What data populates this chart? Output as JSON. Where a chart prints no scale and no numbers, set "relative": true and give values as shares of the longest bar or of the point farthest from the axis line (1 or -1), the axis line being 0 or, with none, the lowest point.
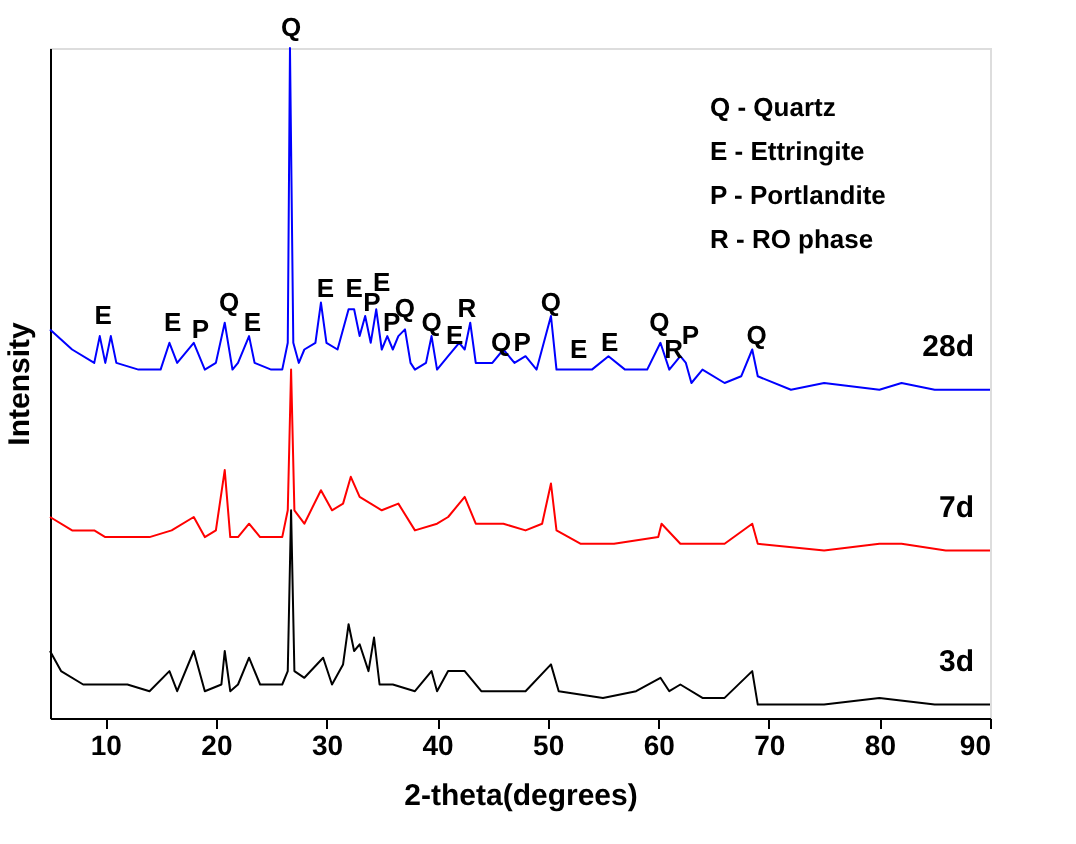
{
  "chart_data": {
    "type": "line",
    "relative": true,
    "xlabel": "2-theta(degrees)",
    "ylabel": "Intensity",
    "xlim": [
      5,
      90
    ],
    "xticks": [
      10,
      20,
      30,
      40,
      50,
      60,
      70,
      80,
      90
    ],
    "tick_labels": "x",
    "series": [
      {
        "name": "28d",
        "color": "#0000ff",
        "x": [
          5,
          7,
          9,
          9.5,
          10,
          10.5,
          11,
          13,
          15,
          15.8,
          16.5,
          18,
          19,
          20,
          20.8,
          21.5,
          22,
          23,
          23.5,
          25,
          26,
          26.5,
          26.7,
          27,
          27.5,
          28,
          29,
          29.5,
          30,
          31,
          32,
          32.5,
          33,
          33.5,
          34,
          34.5,
          35,
          35.5,
          36,
          36.5,
          37.1,
          37.6,
          38,
          39,
          39.5,
          40,
          41,
          42,
          42.5,
          43,
          43.5,
          45,
          46,
          47,
          48,
          49,
          50.3,
          50.8,
          52,
          54,
          55.5,
          57,
          59,
          60.2,
          61,
          62,
          62.5,
          63,
          64,
          66,
          67.5,
          68.5,
          69,
          72,
          75,
          80,
          82,
          85,
          88,
          90
        ],
        "values": [
          0.58,
          0.55,
          0.53,
          0.57,
          0.53,
          0.57,
          0.53,
          0.52,
          0.52,
          0.56,
          0.53,
          0.56,
          0.52,
          0.53,
          0.59,
          0.52,
          0.53,
          0.57,
          0.53,
          0.52,
          0.52,
          0.56,
          1,
          0.56,
          0.53,
          0.55,
          0.56,
          0.62,
          0.56,
          0.55,
          0.61,
          0.61,
          0.57,
          0.6,
          0.56,
          0.61,
          0.55,
          0.57,
          0.55,
          0.57,
          0.58,
          0.53,
          0.52,
          0.53,
          0.57,
          0.52,
          0.54,
          0.56,
          0.55,
          0.59,
          0.53,
          0.53,
          0.55,
          0.53,
          0.54,
          0.52,
          0.6,
          0.52,
          0.52,
          0.52,
          0.54,
          0.52,
          0.52,
          0.56,
          0.52,
          0.54,
          0.53,
          0.5,
          0.52,
          0.5,
          0.51,
          0.55,
          0.51,
          0.49,
          0.5,
          0.49,
          0.5,
          0.49,
          0.49,
          0.49
        ]
      },
      {
        "name": "7d",
        "color": "#ff0000",
        "x": [
          5,
          7,
          9,
          10,
          12,
          14,
          16,
          18,
          19,
          20,
          20.8,
          21.3,
          22,
          23,
          24,
          26,
          26.5,
          26.8,
          27.1,
          28,
          29.5,
          30.5,
          31.5,
          32.2,
          33,
          35,
          36.5,
          38,
          40,
          41,
          42.5,
          43.5,
          46,
          48,
          49.5,
          50.3,
          50.8,
          53,
          56,
          60,
          60.3,
          62,
          66,
          68.5,
          69,
          75,
          80,
          82,
          86,
          90
        ],
        "values": [
          0.3,
          0.28,
          0.28,
          0.27,
          0.27,
          0.27,
          0.28,
          0.3,
          0.27,
          0.28,
          0.37,
          0.27,
          0.27,
          0.29,
          0.27,
          0.27,
          0.31,
          0.52,
          0.31,
          0.29,
          0.34,
          0.31,
          0.32,
          0.36,
          0.33,
          0.31,
          0.32,
          0.28,
          0.29,
          0.3,
          0.33,
          0.29,
          0.29,
          0.28,
          0.29,
          0.35,
          0.28,
          0.26,
          0.26,
          0.27,
          0.29,
          0.26,
          0.26,
          0.29,
          0.26,
          0.25,
          0.26,
          0.26,
          0.25,
          0.25
        ]
      },
      {
        "name": "3d",
        "color": "#000000",
        "x": [
          5,
          6,
          8,
          10,
          12,
          14,
          15.8,
          16.5,
          18,
          19,
          20.5,
          20.8,
          21.3,
          22,
          23,
          24,
          26,
          26.5,
          26.8,
          27.1,
          28,
          29.7,
          30.5,
          31.5,
          32,
          32.5,
          33,
          33.8,
          34.3,
          34.8,
          36,
          38,
          39.5,
          40,
          41,
          42.5,
          44,
          46,
          48,
          50.3,
          51,
          55,
          58,
          60.2,
          61,
          62,
          64,
          66,
          68.5,
          69,
          75,
          80,
          85,
          90
        ],
        "values": [
          0.1,
          0.07,
          0.05,
          0.05,
          0.05,
          0.04,
          0.07,
          0.04,
          0.1,
          0.04,
          0.05,
          0.1,
          0.04,
          0.05,
          0.09,
          0.05,
          0.05,
          0.07,
          0.31,
          0.07,
          0.06,
          0.09,
          0.05,
          0.08,
          0.14,
          0.1,
          0.11,
          0.07,
          0.12,
          0.05,
          0.05,
          0.04,
          0.07,
          0.04,
          0.07,
          0.07,
          0.04,
          0.04,
          0.04,
          0.08,
          0.04,
          0.03,
          0.04,
          0.06,
          0.04,
          0.05,
          0.03,
          0.03,
          0.07,
          0.02,
          0.02,
          0.03,
          0.02,
          0.02
        ]
      }
    ],
    "annotations": [
      {
        "text": "E",
        "x": 9.8,
        "y": 0.57
      },
      {
        "text": "E",
        "x": 16.1,
        "y": 0.56
      },
      {
        "text": "P",
        "x": 18.6,
        "y": 0.55
      },
      {
        "text": "Q",
        "x": 21.2,
        "y": 0.59
      },
      {
        "text": "E",
        "x": 23.3,
        "y": 0.56
      },
      {
        "text": "Q",
        "x": 26.8,
        "y": 1.0
      },
      {
        "text": "E",
        "x": 29.9,
        "y": 0.61
      },
      {
        "text": "E",
        "x": 32.5,
        "y": 0.61
      },
      {
        "text": "E",
        "x": 35.0,
        "y": 0.62
      },
      {
        "text": "P",
        "x": 34.1,
        "y": 0.59
      },
      {
        "text": "P",
        "x": 35.9,
        "y": 0.56
      },
      {
        "text": "Q",
        "x": 37.1,
        "y": 0.58
      },
      {
        "text": "Q",
        "x": 39.5,
        "y": 0.56
      },
      {
        "text": "E",
        "x": 41.6,
        "y": 0.54
      },
      {
        "text": "R",
        "x": 42.7,
        "y": 0.58
      },
      {
        "text": "Q",
        "x": 45.8,
        "y": 0.53
      },
      {
        "text": "P",
        "x": 47.7,
        "y": 0.53
      },
      {
        "text": "Q",
        "x": 50.3,
        "y": 0.59
      },
      {
        "text": "E",
        "x": 52.8,
        "y": 0.52
      },
      {
        "text": "E",
        "x": 55.6,
        "y": 0.53
      },
      {
        "text": "Q",
        "x": 60.1,
        "y": 0.56
      },
      {
        "text": "R",
        "x": 61.4,
        "y": 0.52
      },
      {
        "text": "P",
        "x": 62.9,
        "y": 0.54
      },
      {
        "text": "Q",
        "x": 68.9,
        "y": 0.54
      },
      "Q - Quartz",
      "E - Ettringite",
      "P - Portlandite",
      "R - RO phase"
    ]
  }
}
